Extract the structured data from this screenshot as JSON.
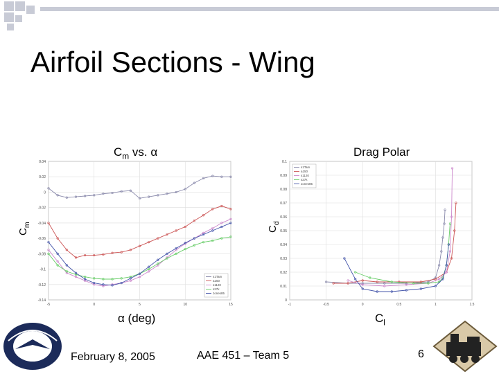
{
  "slide": {
    "title": "Airfoil Sections - Wing",
    "footer_date": "February 8, 2005",
    "footer_center": "AAE 451 – Team 5",
    "page_number": "6",
    "logo_left_text": "Aeronautics & Astronautics"
  },
  "chart_data": [
    {
      "type": "line",
      "title_main": "C",
      "title_sub": "m",
      "title_rest": " vs. α",
      "xlabel": "α (deg)",
      "ylabel_main": "C",
      "ylabel_sub": "m",
      "xlim": [
        -5,
        15
      ],
      "ylim": [
        -0.14,
        0.04
      ],
      "xticks": [
        -5,
        0,
        5,
        10,
        15
      ],
      "yticks": [
        0.04,
        0.02,
        0,
        -0.02,
        -0.04,
        -0.06,
        -0.08,
        -0.1,
        -0.12,
        -0.14
      ],
      "ytick_labels": [
        "0.04",
        "0.02",
        "0",
        "-0.02",
        "-0.04",
        "-0.06",
        "-0.08",
        "-0.1",
        "-0.12",
        "-0.14"
      ],
      "grid": true,
      "legend_position": "bottom-right",
      "series": [
        {
          "name": "s1Tam",
          "color": "#8888aa",
          "x": [
            -5,
            -4,
            -3,
            -2,
            -1,
            0,
            1,
            2,
            3,
            4,
            5,
            6,
            7,
            8,
            9,
            10,
            11,
            12,
            13,
            14,
            15
          ],
          "y": [
            0.005,
            -0.004,
            -0.007,
            -0.006,
            -0.005,
            -0.004,
            -0.002,
            -0.001,
            0.001,
            0.002,
            -0.008,
            -0.006,
            -0.004,
            -0.002,
            0.0,
            0.004,
            0.012,
            0.018,
            0.021,
            0.02,
            0.02
          ]
        },
        {
          "name": "a150",
          "color": "#cc5555",
          "x": [
            -5,
            -4,
            -3,
            -2,
            -1,
            0,
            1,
            2,
            3,
            4,
            5,
            6,
            7,
            8,
            9,
            10,
            11,
            12,
            13,
            14,
            15
          ],
          "y": [
            -0.04,
            -0.06,
            -0.075,
            -0.085,
            -0.082,
            -0.082,
            -0.081,
            -0.079,
            -0.078,
            -0.075,
            -0.07,
            -0.065,
            -0.06,
            -0.055,
            -0.05,
            -0.045,
            -0.037,
            -0.03,
            -0.022,
            -0.018,
            -0.022
          ]
        },
        {
          "name": "s1120",
          "color": "#cc88cc",
          "x": [
            -5,
            -4,
            -3,
            -2,
            -1,
            0,
            1,
            2,
            3,
            4,
            5,
            6,
            7,
            8,
            9,
            10,
            11,
            12,
            13,
            14,
            15
          ],
          "y": [
            -0.075,
            -0.09,
            -0.105,
            -0.11,
            -0.115,
            -0.12,
            -0.122,
            -0.12,
            -0.118,
            -0.115,
            -0.11,
            -0.103,
            -0.095,
            -0.085,
            -0.075,
            -0.067,
            -0.06,
            -0.053,
            -0.047,
            -0.04,
            -0.035
          ]
        },
        {
          "name": "s27k",
          "color": "#66cc66",
          "x": [
            -5,
            -4,
            -3,
            -2,
            -1,
            0,
            1,
            2,
            3,
            4,
            5,
            6,
            7,
            8,
            9,
            10,
            11,
            12,
            13,
            14,
            15
          ],
          "y": [
            -0.08,
            -0.095,
            -0.103,
            -0.107,
            -0.11,
            -0.112,
            -0.113,
            -0.113,
            -0.112,
            -0.11,
            -0.106,
            -0.1,
            -0.093,
            -0.086,
            -0.08,
            -0.074,
            -0.069,
            -0.065,
            -0.063,
            -0.06,
            -0.058
          ]
        },
        {
          "name": "Jones85",
          "color": "#4455aa",
          "x": [
            -5,
            -4,
            -3,
            -2,
            -1,
            0,
            1,
            2,
            3,
            4,
            5,
            6,
            7,
            8,
            9,
            10,
            11,
            12,
            13,
            14,
            15
          ],
          "y": [
            -0.065,
            -0.08,
            -0.095,
            -0.105,
            -0.113,
            -0.118,
            -0.12,
            -0.121,
            -0.118,
            -0.112,
            -0.106,
            -0.097,
            -0.088,
            -0.08,
            -0.073,
            -0.066,
            -0.06,
            -0.055,
            -0.05,
            -0.045,
            -0.04
          ]
        }
      ]
    },
    {
      "type": "line",
      "title": "Drag Polar",
      "xlabel_main": "C",
      "xlabel_sub": "l",
      "ylabel_main": "C",
      "ylabel_sub": "d",
      "xlim": [
        -1,
        1.5
      ],
      "ylim": [
        0,
        0.1
      ],
      "xticks": [
        -1,
        -0.5,
        0,
        0.5,
        1,
        1.5
      ],
      "xtick_labels": [
        "-1",
        "-0.5",
        "0",
        "0.5",
        "1",
        "1.5"
      ],
      "yticks": [
        0,
        0.01,
        0.02,
        0.03,
        0.04,
        0.05,
        0.06,
        0.07,
        0.08,
        0.09,
        0.1
      ],
      "ytick_labels": [
        "0",
        "0.01",
        "0.02",
        "0.03",
        "0.04",
        "0.05",
        "0.06",
        "0.07",
        "0.08",
        "0.09",
        "0.1"
      ],
      "grid": true,
      "legend_position": "top-left",
      "series": [
        {
          "name": "s1Tam",
          "color": "#8888aa",
          "x": [
            -0.5,
            -0.2,
            0.0,
            0.3,
            0.6,
            0.9,
            1.0,
            1.05,
            1.08,
            1.1,
            1.12,
            1.13
          ],
          "y": [
            0.013,
            0.012,
            0.012,
            0.012,
            0.012,
            0.013,
            0.016,
            0.025,
            0.035,
            0.045,
            0.055,
            0.065
          ]
        },
        {
          "name": "a150",
          "color": "#cc5555",
          "x": [
            -0.4,
            -0.2,
            0.0,
            0.2,
            0.5,
            0.8,
            1.0,
            1.15,
            1.22,
            1.26,
            1.28
          ],
          "y": [
            0.012,
            0.012,
            0.014,
            0.013,
            0.013,
            0.013,
            0.015,
            0.02,
            0.03,
            0.05,
            0.07
          ]
        },
        {
          "name": "s1120",
          "color": "#cc88cc",
          "x": [
            -0.2,
            0.0,
            0.3,
            0.6,
            0.9,
            1.05,
            1.15,
            1.2,
            1.22,
            1.23
          ],
          "y": [
            0.014,
            0.011,
            0.01,
            0.011,
            0.012,
            0.015,
            0.02,
            0.035,
            0.06,
            0.095
          ]
        },
        {
          "name": "s27k",
          "color": "#66cc66",
          "x": [
            -0.1,
            0.1,
            0.4,
            0.7,
            0.9,
            1.05,
            1.1,
            1.15,
            1.18,
            1.2
          ],
          "y": [
            0.02,
            0.016,
            0.013,
            0.012,
            0.012,
            0.013,
            0.016,
            0.025,
            0.04,
            0.055
          ]
        },
        {
          "name": "Jones85",
          "color": "#4455aa",
          "x": [
            -0.25,
            -0.1,
            0.0,
            0.2,
            0.4,
            0.6,
            0.8,
            1.0,
            1.1,
            1.15,
            1.18
          ],
          "y": [
            0.03,
            0.015,
            0.008,
            0.006,
            0.006,
            0.007,
            0.008,
            0.01,
            0.015,
            0.025,
            0.04
          ]
        }
      ]
    }
  ]
}
